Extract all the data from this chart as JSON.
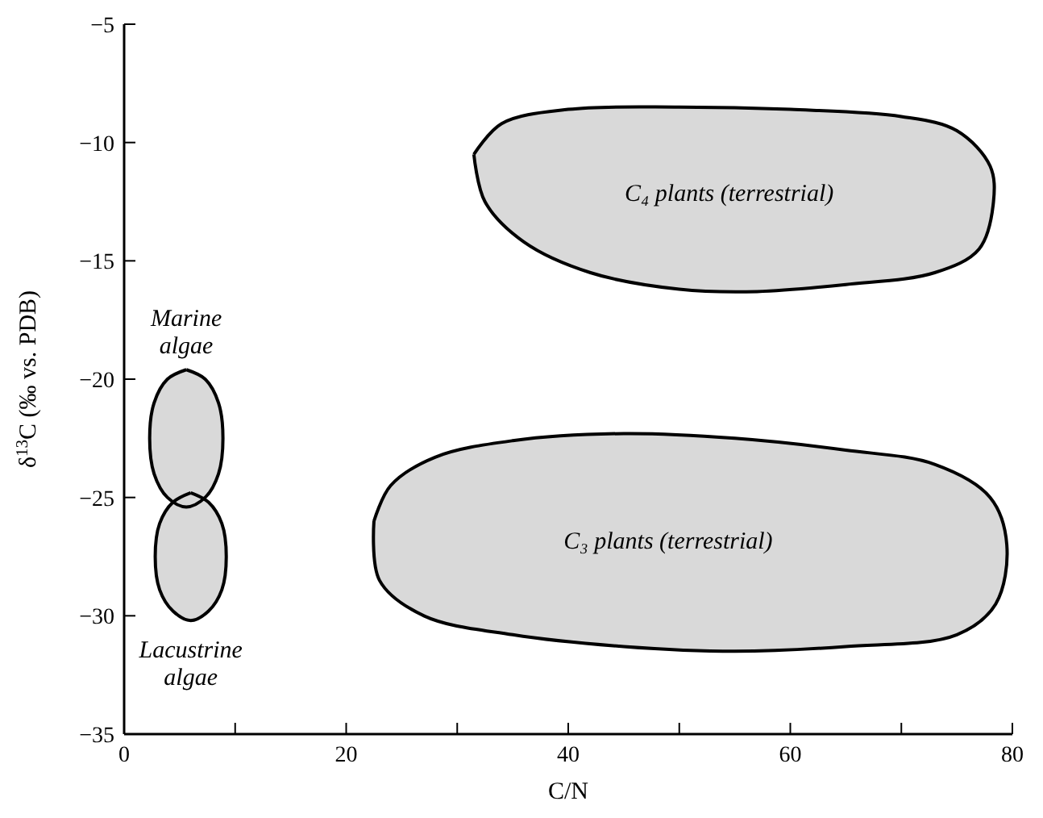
{
  "chart_data": {
    "type": "area",
    "xlabel": "C/N",
    "ylabel": "δ$^{13}$C (‰ vs. PDB)",
    "xlim": [
      0,
      80
    ],
    "ylim": [
      -35,
      -5
    ],
    "xticks": [
      0,
      {
        "value": 10,
        "label": null
      },
      20,
      {
        "value": 30,
        "label": null
      },
      40,
      {
        "value": 50,
        "label": null
      },
      60,
      {
        "value": 70,
        "label": null
      },
      80
    ],
    "yticks": [
      -35,
      -30,
      -25,
      -20,
      -15,
      -10,
      -5
    ],
    "grid": false,
    "marker": "none",
    "line_style": "solid",
    "series": [
      {
        "name": "C₄ plants (terrestrial)",
        "color": "#000000",
        "x": [
          31.5,
          34,
          40,
          50,
          60,
          70,
          75,
          78,
          78.3,
          77,
          73,
          65,
          57,
          50,
          42,
          36,
          32.5,
          31.5
        ],
        "values": [
          -10.5,
          -9.2,
          -8.6,
          -8.5,
          -8.6,
          -8.9,
          -9.5,
          -11,
          -12.5,
          -14.5,
          -15.5,
          -16,
          -16.3,
          -16.2,
          -15.5,
          -14.2,
          -12.5,
          -10.5
        ]
      },
      {
        "name": "C₃ plants (terrestrial)",
        "color": "#000000",
        "x": [
          22.5,
          24,
          28,
          35,
          45,
          55,
          65,
          73,
          78,
          79.5,
          78.5,
          75,
          65,
          55,
          45,
          35,
          27,
          23,
          22.5
        ],
        "values": [
          -26,
          -24.5,
          -23.3,
          -22.6,
          -22.3,
          -22.5,
          -23,
          -23.6,
          -25,
          -27,
          -29.5,
          -30.8,
          -31.3,
          -31.5,
          -31.3,
          -30.8,
          -30,
          -28.5,
          -26
        ]
      },
      {
        "name": "Marine\nalgae",
        "color": "#000000",
        "x": [
          5.6,
          7.3,
          8.5,
          8.9,
          8.5,
          7.3,
          5.6,
          3.9,
          2.7,
          2.3,
          2.7,
          3.9,
          5.6
        ],
        "values": [
          -19.6,
          -20,
          -21,
          -22.5,
          -24,
          -25,
          -25.4,
          -25,
          -24,
          -22.5,
          -21,
          -20,
          -19.6
        ]
      },
      {
        "name": "Lacustrine\nalgae",
        "color": "#000000",
        "x": [
          6,
          7.6,
          8.8,
          9.2,
          8.8,
          7.6,
          6,
          4.4,
          3.2,
          2.8,
          3.2,
          4.4,
          6
        ],
        "values": [
          -24.8,
          -25.2,
          -26.1,
          -27.5,
          -28.9,
          -29.8,
          -30.2,
          -29.8,
          -28.9,
          -27.5,
          -26.1,
          -25.2,
          -24.8
        ]
      }
    ]
  }
}
